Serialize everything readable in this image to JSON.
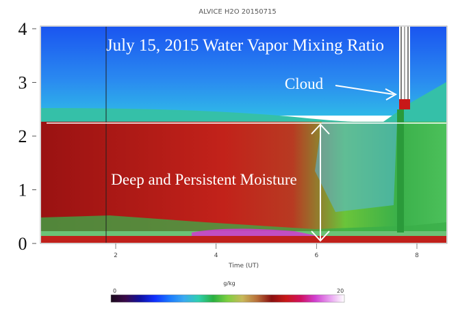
{
  "chart_data": {
    "type": "heatmap",
    "title": "ALVICE H2O 20150715",
    "xlabel": "Time (UT)",
    "ylabel": "",
    "x_ticks": [
      2,
      4,
      6,
      8
    ],
    "xlim": [
      0.5,
      8.6
    ],
    "y_ticks": [
      0,
      1,
      2,
      3,
      4
    ],
    "ylim": [
      0,
      4
    ],
    "colorbar": {
      "label": "g/kg",
      "min": 0,
      "max": 20,
      "min_label": "0",
      "max_label": "20",
      "colors": [
        "#1a0a1c",
        "#3a0a4a",
        "#1010a0",
        "#1030ff",
        "#1a78ff",
        "#3aaaf0",
        "#2ecfb0",
        "#2ab040",
        "#7ed040",
        "#c8b85a",
        "#b8703a",
        "#8a1010",
        "#c81818",
        "#d01060",
        "#d040d0",
        "#e8a0f0",
        "#ffffff"
      ]
    },
    "annotations": {
      "main_title": "July 15, 2015 Water Vapor Mixing Ratio",
      "cloud_label": "Cloud",
      "moisture_label": "Deep and Persistent Moisture"
    },
    "grid": false
  }
}
